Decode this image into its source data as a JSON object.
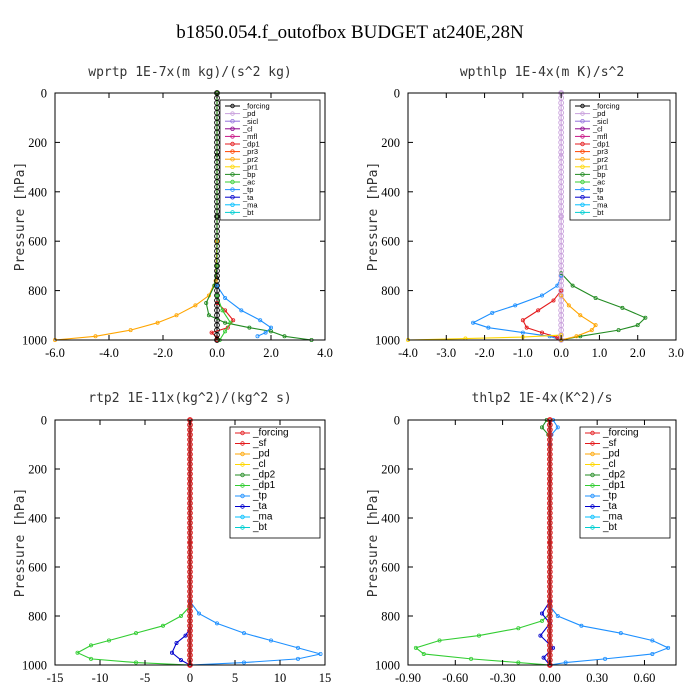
{
  "title": "b1850.054.f_outofbox  BUDGET at240E,28N",
  "colors": {
    "forcing": "#000000",
    "forcing_red": "#e41a1c",
    "pd": "#c9a0dc",
    "sicl": "#9370db",
    "cl": "#8b008b",
    "mfl": "#c71585",
    "dp1": "#e41a1c",
    "pr3": "#ff4500",
    "pr2": "#ffa500",
    "pr1": "#ffd700",
    "bp": "#228b22",
    "ac": "#32cd32",
    "tp": "#1e90ff",
    "ta": "#0000cd",
    "ma": "#00bfff",
    "bt": "#00ced1",
    "sf": "#e41a1c",
    "pd_b": "#ffa500",
    "cl_b": "#ffd700",
    "dp2": "#228b22",
    "dp1_b": "#32cd32",
    "tp_b": "#1e90ff",
    "ta_b": "#0000cd",
    "ma_b": "#00bfff",
    "bt_b": "#00ced1"
  },
  "chart_data": [
    {
      "type": "line",
      "title": "wprtp   1E-7x(m kg)/(s^2 kg)",
      "ylabel": "Pressure [hPa]",
      "xlim": [
        -6,
        4
      ],
      "ylim": [
        1000,
        0
      ],
      "xticks": [
        "-6.0",
        "-4.0",
        "-2.0",
        "0.0",
        "2.0",
        "4.0"
      ],
      "xtick_values": [
        -6,
        -4,
        -2,
        0,
        2,
        4
      ],
      "yticks": [
        "0",
        "200",
        "400",
        "600",
        "800",
        "1000"
      ],
      "ytick_values": [
        0,
        200,
        400,
        600,
        800,
        1000
      ],
      "legend": [
        "_forcing",
        "_pd",
        "_sicl",
        "_cl",
        "_mfl",
        "_dp1",
        "_pr3",
        "_pr2",
        "_pr1",
        "_bp",
        "_ac",
        "_tp",
        "_ta",
        "_ma",
        "_bt"
      ],
      "legend_colors": [
        "forcing",
        "pd",
        "sicl",
        "cl",
        "mfl",
        "dp1",
        "pr3",
        "pr2",
        "pr1",
        "bp",
        "ac",
        "tp",
        "ta",
        "ma",
        "bt"
      ],
      "series": [
        {
          "color": "forcing",
          "x": [
            0,
            0,
            0,
            0,
            0
          ],
          "y": [
            0,
            250,
            500,
            750,
            1000
          ]
        },
        {
          "color": "pr2",
          "x": [
            0,
            0,
            -0.05,
            -0.3,
            -0.8,
            -1.5,
            -2.2,
            -3.2,
            -4.5,
            -6.0
          ],
          "y": [
            0,
            600,
            760,
            820,
            860,
            900,
            930,
            960,
            985,
            1000
          ]
        },
        {
          "color": "bp",
          "x": [
            0,
            0,
            -0.1,
            -0.4,
            -0.3,
            0.3,
            1.2,
            2.0,
            2.5,
            3.5
          ],
          "y": [
            0,
            700,
            780,
            850,
            900,
            930,
            950,
            965,
            985,
            1000
          ]
        },
        {
          "color": "dp1",
          "x": [
            0,
            0.3,
            0.6,
            0.4,
            -0.2,
            0,
            0
          ],
          "y": [
            850,
            880,
            920,
            950,
            970,
            990,
            1000
          ]
        },
        {
          "color": "tp",
          "x": [
            0,
            0.3,
            0.9,
            1.6,
            2.0,
            1.8,
            1.5
          ],
          "y": [
            780,
            830,
            880,
            920,
            950,
            970,
            985
          ]
        },
        {
          "color": "ac",
          "x": [
            0,
            0.2,
            0.5,
            0.3,
            0.1
          ],
          "y": [
            820,
            880,
            930,
            965,
            1000
          ]
        }
      ]
    },
    {
      "type": "line",
      "title": "wpthlp   1E-4x(m K)/s^2",
      "ylabel": "Pressure [hPa]",
      "xlim": [
        -4,
        3
      ],
      "ylim": [
        1000,
        0
      ],
      "xticks": [
        "-4.0",
        "-3.0",
        "-2.0",
        "-1.0",
        "0.0",
        "1.0",
        "2.0",
        "3.0"
      ],
      "xtick_values": [
        -4,
        -3,
        -2,
        -1,
        0,
        1,
        2,
        3
      ],
      "yticks": [
        "0",
        "200",
        "400",
        "600",
        "800",
        "1000"
      ],
      "ytick_values": [
        0,
        200,
        400,
        600,
        800,
        1000
      ],
      "legend": [
        "_forcing",
        "_pd",
        "_sicl",
        "_cl",
        "_mfl",
        "_dp1",
        "_pr3",
        "_pr2",
        "_pr1",
        "_bp",
        "_ac",
        "_tp",
        "_ta",
        "_ma",
        "_bt"
      ],
      "legend_colors": [
        "forcing",
        "pd",
        "sicl",
        "cl",
        "mfl",
        "dp1",
        "pr3",
        "pr2",
        "pr1",
        "bp",
        "ac",
        "tp",
        "ta",
        "ma",
        "bt"
      ],
      "series": [
        {
          "color": "pd",
          "x": [
            0,
            0,
            0,
            0,
            0
          ],
          "y": [
            0,
            250,
            500,
            750,
            1000
          ]
        },
        {
          "color": "tp",
          "x": [
            0,
            -0.1,
            -0.5,
            -1.2,
            -1.8,
            -2.3,
            -1.9,
            -1.0,
            -0.3,
            0
          ],
          "y": [
            740,
            780,
            820,
            860,
            890,
            930,
            950,
            970,
            985,
            1000
          ]
        },
        {
          "color": "dp1",
          "x": [
            0,
            -0.2,
            -0.6,
            -1.0,
            -0.9,
            -0.5,
            -0.1,
            0
          ],
          "y": [
            800,
            840,
            880,
            920,
            950,
            970,
            990,
            1000
          ]
        },
        {
          "color": "bp",
          "x": [
            0,
            0.3,
            0.9,
            1.6,
            2.2,
            2.0,
            1.5,
            0.5,
            0
          ],
          "y": [
            730,
            780,
            830,
            870,
            910,
            940,
            960,
            985,
            1000
          ]
        },
        {
          "color": "pr2",
          "x": [
            0,
            0.2,
            0.5,
            0.9,
            0.8,
            0.4,
            0
          ],
          "y": [
            820,
            860,
            900,
            940,
            960,
            985,
            1000
          ]
        },
        {
          "color": "pr1",
          "x": [
            0,
            -1.0,
            -2.5,
            -4.0
          ],
          "y": [
            980,
            988,
            994,
            1000
          ]
        }
      ]
    },
    {
      "type": "line",
      "title": "rtp2   1E-11x(kg^2)/(kg^2 s)",
      "ylabel": "Pressure [hPa]",
      "xlim": [
        -15,
        15
      ],
      "ylim": [
        1000,
        0
      ],
      "xticks": [
        "-15",
        "-10",
        "-5",
        "0",
        "5",
        "10",
        "15"
      ],
      "xtick_values": [
        -15,
        -10,
        -5,
        0,
        5,
        10,
        15
      ],
      "yticks": [
        "0",
        "200",
        "400",
        "600",
        "800",
        "1000"
      ],
      "ytick_values": [
        0,
        200,
        400,
        600,
        800,
        1000
      ],
      "legend": [
        "_forcing",
        "_sf",
        "_pd",
        "_cl",
        "_dp2",
        "_dp1",
        "_tp",
        "_ta",
        "_ma",
        "_bt"
      ],
      "legend_colors": [
        "forcing_red",
        "sf",
        "pd_b",
        "cl_b",
        "dp2",
        "dp1_b",
        "tp_b",
        "ta_b",
        "ma_b",
        "bt_b"
      ],
      "series": [
        {
          "color": "dp1_b",
          "x": [
            0,
            -1,
            -3,
            -6,
            -9,
            -11,
            -12.5,
            -11,
            -6,
            0
          ],
          "y": [
            760,
            800,
            840,
            870,
            900,
            920,
            950,
            975,
            990,
            1000
          ]
        },
        {
          "color": "tp_b",
          "x": [
            0,
            1,
            3,
            6,
            9,
            12,
            14.5,
            12,
            6,
            0
          ],
          "y": [
            740,
            790,
            830,
            870,
            900,
            930,
            955,
            975,
            990,
            1000
          ]
        },
        {
          "color": "ta_b",
          "x": [
            0,
            -0.5,
            -1.5,
            -2.0,
            -1.0,
            0
          ],
          "y": [
            850,
            880,
            910,
            950,
            980,
            1000
          ]
        },
        {
          "color": "forcing_red",
          "x": [
            0,
            0,
            0,
            0,
            0
          ],
          "y": [
            0,
            250,
            500,
            750,
            1000
          ]
        }
      ]
    },
    {
      "type": "line",
      "title": "thlp2   1E-4x(K^2)/s",
      "ylabel": "Pressure [hPa]",
      "xlim": [
        -0.9,
        0.8
      ],
      "ylim": [
        1000,
        0
      ],
      "xticks": [
        "-0.90",
        "-0.60",
        "-0.30",
        "0.00",
        "0.30",
        "0.60"
      ],
      "xtick_values": [
        -0.9,
        -0.6,
        -0.3,
        0,
        0.3,
        0.6
      ],
      "yticks": [
        "0",
        "200",
        "400",
        "600",
        "800",
        "1000"
      ],
      "ytick_values": [
        0,
        200,
        400,
        600,
        800,
        1000
      ],
      "legend": [
        "_forcing",
        "_sf",
        "_pd",
        "_cl",
        "_dp2",
        "_dp1",
        "_tp",
        "_ta",
        "_ma",
        "_bt"
      ],
      "legend_colors": [
        "forcing_red",
        "sf",
        "pd_b",
        "cl_b",
        "dp2",
        "dp1_b",
        "tp_b",
        "ta_b",
        "ma_b",
        "bt_b"
      ],
      "series": [
        {
          "color": "dp1_b",
          "x": [
            0,
            -0.05,
            -0.2,
            -0.45,
            -0.7,
            -0.85,
            -0.8,
            -0.5,
            -0.2,
            0
          ],
          "y": [
            790,
            820,
            850,
            880,
            900,
            930,
            955,
            975,
            990,
            1000
          ]
        },
        {
          "color": "tp_b",
          "x": [
            0,
            0.05,
            0.2,
            0.45,
            0.65,
            0.75,
            0.65,
            0.35,
            0.1,
            0
          ],
          "y": [
            760,
            800,
            840,
            870,
            900,
            930,
            955,
            975,
            990,
            1000
          ]
        },
        {
          "color": "ta_b",
          "x": [
            0,
            -0.05,
            0,
            -0.06,
            0.02,
            -0.04,
            0
          ],
          "y": [
            740,
            790,
            830,
            880,
            930,
            970,
            1000
          ]
        },
        {
          "color": "dp2",
          "x": [
            -0.02,
            -0.05,
            -0.01,
            0
          ],
          "y": [
            0,
            30,
            60,
            100
          ]
        },
        {
          "color": "tp_b",
          "x": [
            0.02,
            0.05,
            0.01,
            0
          ],
          "y": [
            0,
            30,
            60,
            100
          ]
        },
        {
          "color": "forcing_red",
          "x": [
            0,
            0,
            0,
            0,
            0
          ],
          "y": [
            0,
            250,
            500,
            750,
            1000
          ]
        }
      ]
    }
  ]
}
